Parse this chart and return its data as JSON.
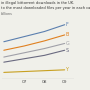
{
  "title_line1": "in illegal bittorrent downloads in the UK.",
  "title_line2": "to the most downloaded files per year in each category",
  "title_line3": "billions",
  "x": [
    2006,
    2007,
    2008,
    2009
  ],
  "x_labels": [
    "07",
    "08",
    "09"
  ],
  "series": [
    {
      "label": "F",
      "color": "#5b7faf",
      "values": [
        2.5,
        2.8,
        3.1,
        3.5
      ]
    },
    {
      "label": "B",
      "color": "#e08020",
      "values": [
        2.0,
        2.25,
        2.55,
        2.9
      ]
    },
    {
      "label": "G",
      "color": "#a0a0a8",
      "values": [
        1.6,
        1.85,
        2.1,
        2.4
      ]
    },
    {
      "label": "S",
      "color": "#6a6a80",
      "values": [
        1.3,
        1.5,
        1.7,
        2.0
      ]
    },
    {
      "label": "Y",
      "color": "#c8a020",
      "values": [
        0.7,
        0.75,
        0.8,
        0.85
      ]
    }
  ],
  "ylim": [
    0.3,
    4.0
  ],
  "xlim_min": 2006,
  "xlim_max": 2009,
  "background_color": "#f0f0ea",
  "fontsize": 3.2,
  "label_fontsize": 3.5
}
